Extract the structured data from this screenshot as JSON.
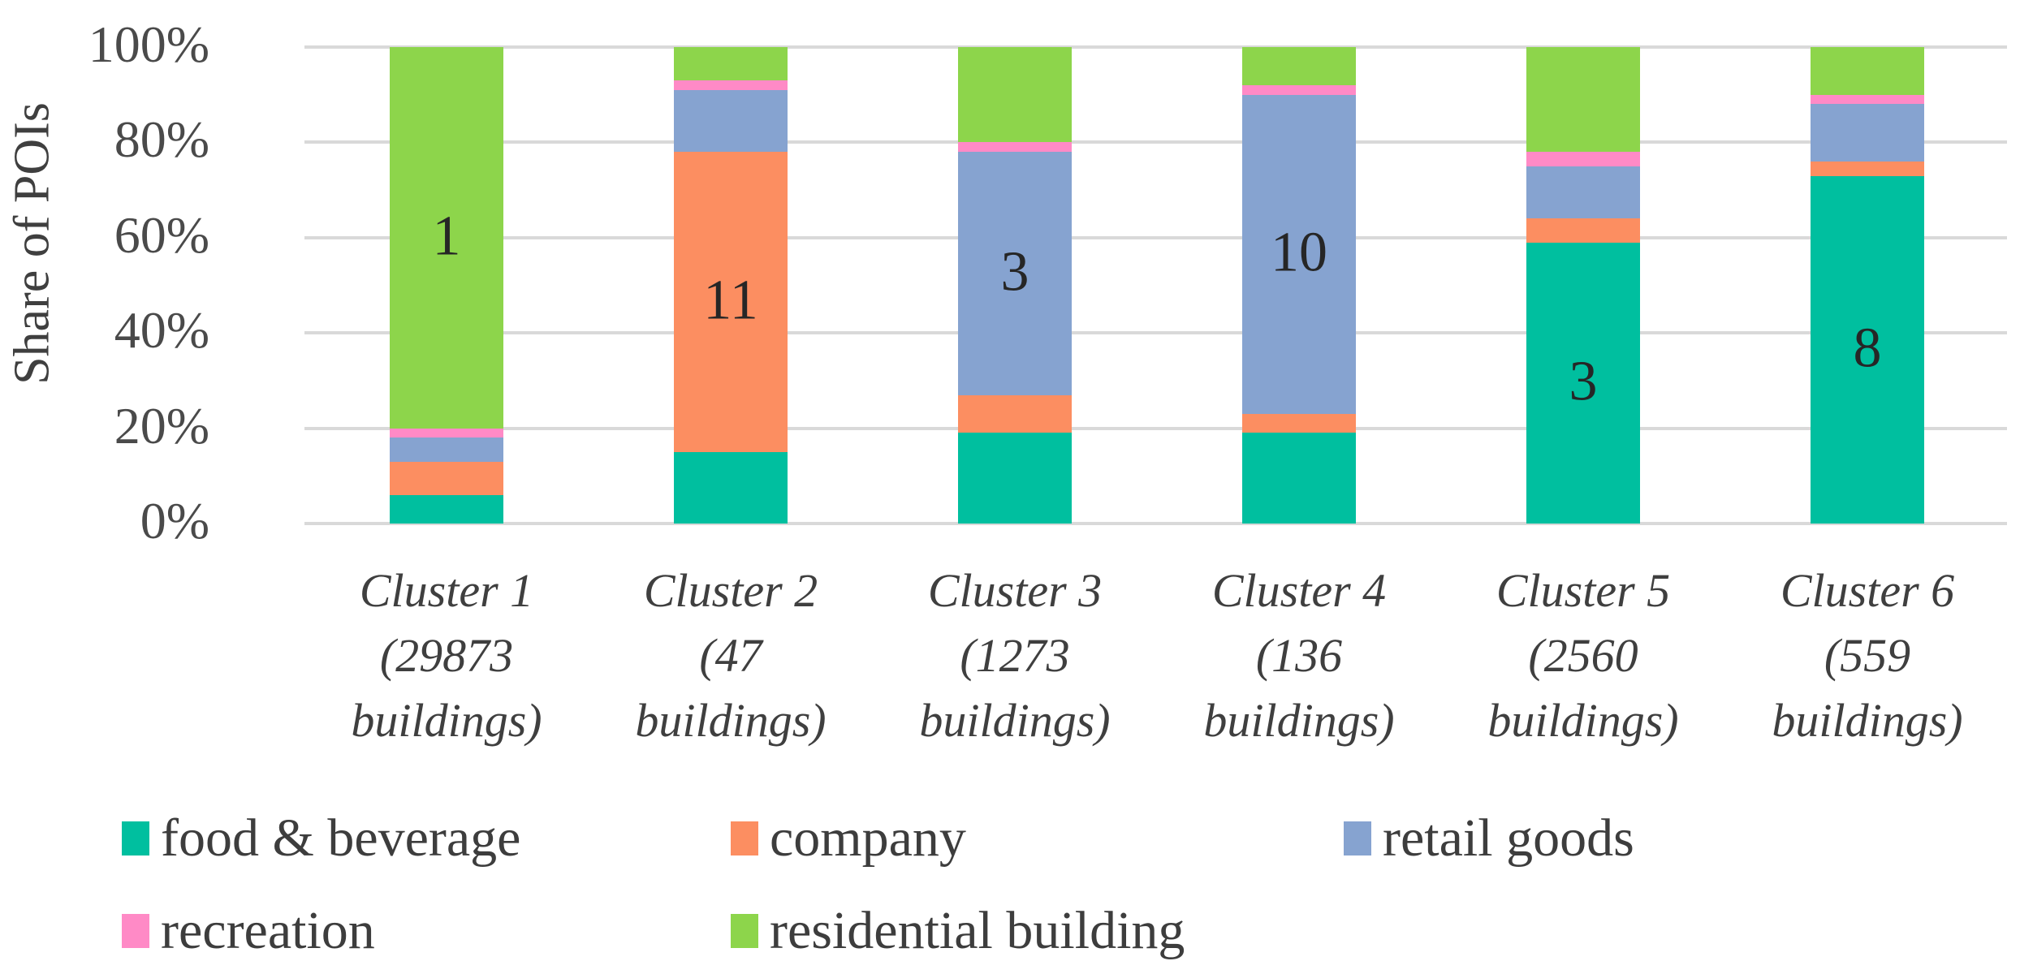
{
  "chart_data": {
    "type": "bar",
    "stacked": true,
    "percent_stacked": true,
    "title": "",
    "ylabel": "Share of POIs",
    "xlabel": "",
    "ylim": [
      0,
      100
    ],
    "y_ticks": [
      "100%",
      "80%",
      "60%",
      "40%",
      "20%",
      "0%"
    ],
    "grid": true,
    "gridline_color": "#d9d9d9",
    "text_color": "#3f3f3f",
    "categories": [
      [
        "Cluster 1",
        "(29873",
        "buildings)"
      ],
      [
        "Cluster 2",
        "(47",
        "buildings)"
      ],
      [
        "Cluster 3",
        "(1273",
        "buildings)"
      ],
      [
        "Cluster 4",
        "(136",
        "buildings)"
      ],
      [
        "Cluster 5",
        "(2560",
        "buildings)"
      ],
      [
        "Cluster 6",
        "(559",
        "buildings)"
      ]
    ],
    "series": [
      {
        "name": "food & beverage",
        "color": "#00bf9f",
        "values": [
          6,
          15,
          19,
          19,
          59,
          73
        ]
      },
      {
        "name": "company",
        "color": "#fc8e61",
        "values": [
          7,
          63,
          8,
          4,
          5,
          3
        ]
      },
      {
        "name": "retail goods",
        "color": "#86a3d0",
        "values": [
          5,
          13,
          51,
          67,
          11,
          12
        ]
      },
      {
        "name": "recreation",
        "color": "#ff8ac6",
        "values": [
          2,
          2,
          2,
          2,
          3,
          2
        ]
      },
      {
        "name": "residential building",
        "color": "#8dd54b",
        "values": [
          80,
          7,
          20,
          8,
          22,
          10
        ]
      }
    ],
    "bar_labels": [
      {
        "category_index": 0,
        "series": "residential building",
        "text": "1"
      },
      {
        "category_index": 1,
        "series": "company",
        "text": "11"
      },
      {
        "category_index": 2,
        "series": "retail goods",
        "text": "3"
      },
      {
        "category_index": 3,
        "series": "retail goods",
        "text": "10"
      },
      {
        "category_index": 4,
        "series": "food & beverage",
        "text": "3"
      },
      {
        "category_index": 5,
        "series": "food & beverage",
        "text": "8"
      }
    ],
    "legend_rows": [
      [
        "food & beverage",
        "company",
        "retail goods"
      ],
      [
        "recreation",
        "residential building"
      ]
    ],
    "legend_position": "bottom"
  }
}
